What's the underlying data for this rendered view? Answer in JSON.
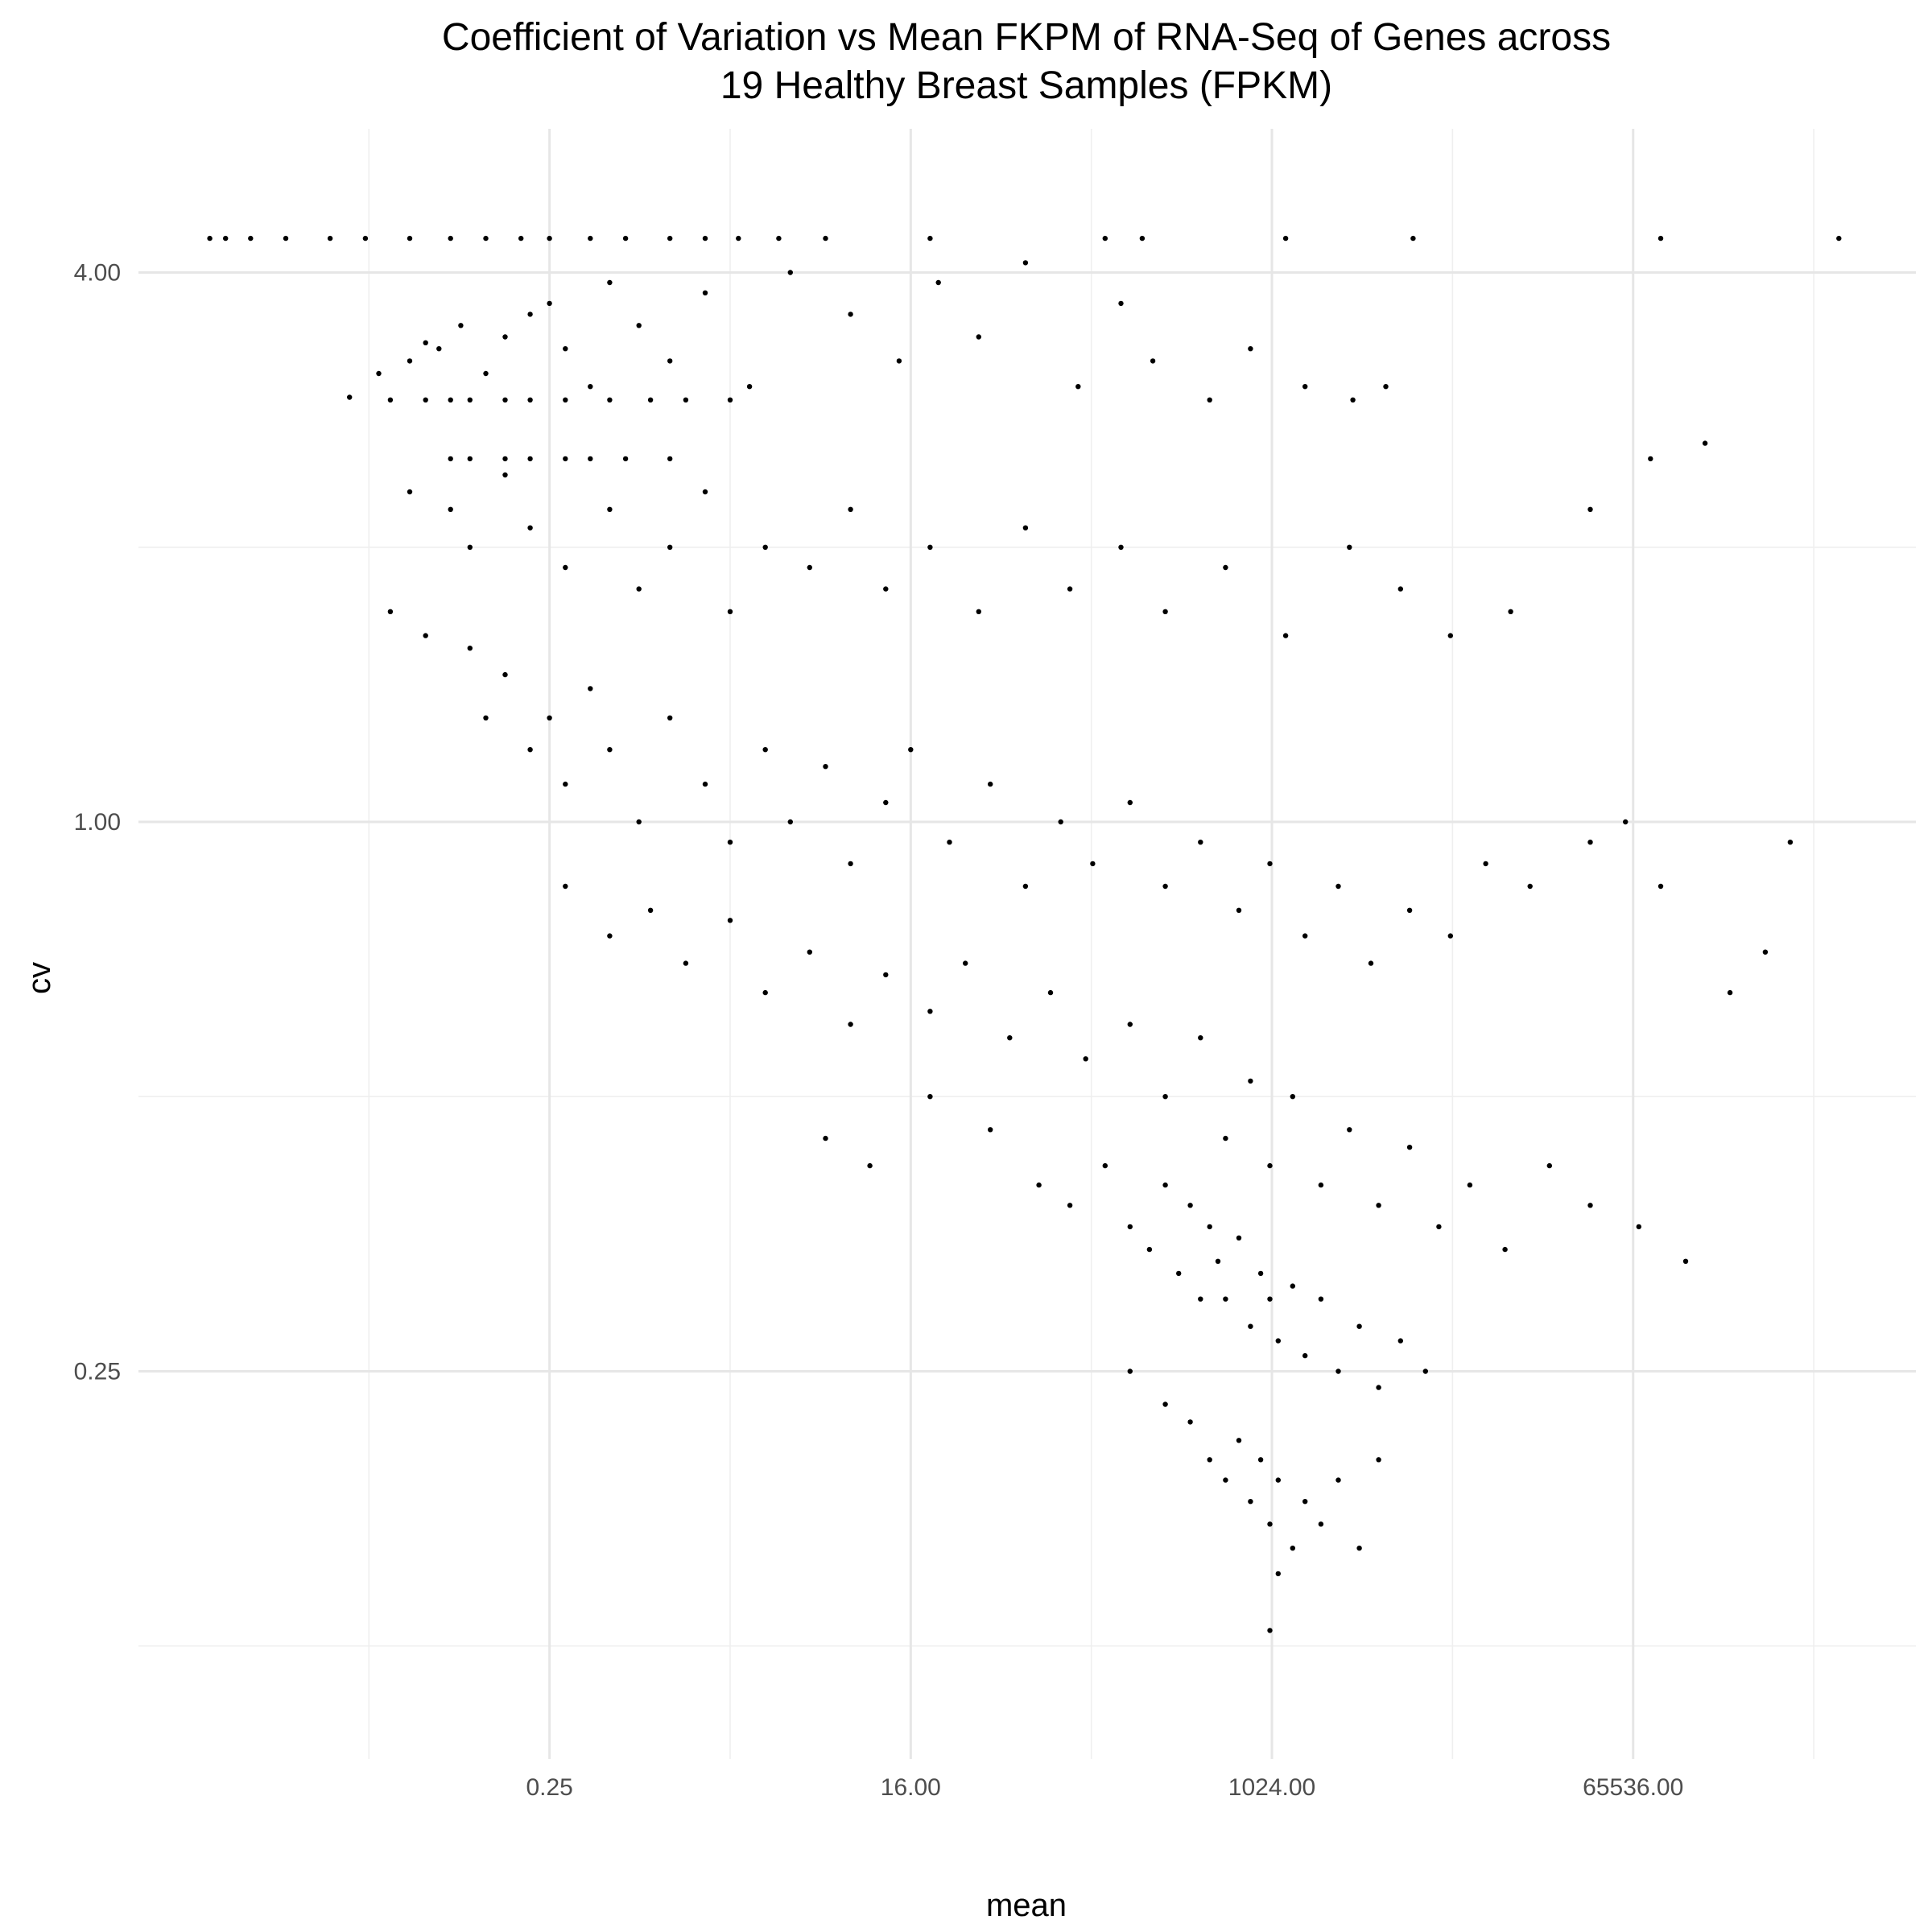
{
  "chart_data": {
    "type": "scatter",
    "title_line1": "Coefficient of Variation vs Mean FKPM of RNA-Seq of Genes across",
    "title_line2": "19 Healthy Breast Samples (FPKM)",
    "xlabel": "mean",
    "ylabel": "cv",
    "x_scale": "log2",
    "y_scale": "log2",
    "xlim": [
      0.0022,
      1700000
    ],
    "ylim": [
      0.094,
      5.3
    ],
    "x_ticks": [
      {
        "value": 0.25,
        "label": "0.25"
      },
      {
        "value": 16,
        "label": "16.00"
      },
      {
        "value": 1024,
        "label": "1024.00"
      },
      {
        "value": 65536,
        "label": "65536.00"
      }
    ],
    "y_ticks": [
      {
        "value": 0.25,
        "label": "0.25"
      },
      {
        "value": 1,
        "label": "1.00"
      },
      {
        "value": 4,
        "label": "4.00"
      }
    ],
    "grid": true,
    "legend": "none",
    "point_color": "#000000",
    "points": [
      [
        0.005,
        4.36
      ],
      [
        0.006,
        4.36
      ],
      [
        0.008,
        4.36
      ],
      [
        0.012,
        4.36
      ],
      [
        0.02,
        4.36
      ],
      [
        0.03,
        4.36
      ],
      [
        0.05,
        4.36
      ],
      [
        0.08,
        4.36
      ],
      [
        0.12,
        4.36
      ],
      [
        0.18,
        4.36
      ],
      [
        0.25,
        4.36
      ],
      [
        0.4,
        4.36
      ],
      [
        0.6,
        4.36
      ],
      [
        1.0,
        4.36
      ],
      [
        1.5,
        4.36
      ],
      [
        2.2,
        4.36
      ],
      [
        3.5,
        4.36
      ],
      [
        6,
        4.36
      ],
      [
        20,
        4.36
      ],
      [
        150,
        4.36
      ],
      [
        230,
        4.36
      ],
      [
        1200,
        4.36
      ],
      [
        5200,
        4.36
      ],
      [
        90000,
        4.36
      ],
      [
        700000,
        4.36
      ],
      [
        0.04,
        2.9
      ],
      [
        0.06,
        2.9
      ],
      [
        0.08,
        2.9
      ],
      [
        0.1,
        2.9
      ],
      [
        0.15,
        2.9
      ],
      [
        0.2,
        2.9
      ],
      [
        0.3,
        2.9
      ],
      [
        0.5,
        2.9
      ],
      [
        0.8,
        2.9
      ],
      [
        1.2,
        2.9
      ],
      [
        2.0,
        2.9
      ],
      [
        0.08,
        2.5
      ],
      [
        0.1,
        2.5
      ],
      [
        0.15,
        2.5
      ],
      [
        0.2,
        2.5
      ],
      [
        0.3,
        2.5
      ],
      [
        0.4,
        2.5
      ],
      [
        0.6,
        2.5
      ],
      [
        1.0,
        2.5
      ],
      [
        0.025,
        2.92
      ],
      [
        0.035,
        3.1
      ],
      [
        0.05,
        3.2
      ],
      [
        0.06,
        3.35
      ],
      [
        0.07,
        3.3
      ],
      [
        0.09,
        3.5
      ],
      [
        0.12,
        3.1
      ],
      [
        0.15,
        3.4
      ],
      [
        0.2,
        3.6
      ],
      [
        0.25,
        3.7
      ],
      [
        0.3,
        3.3
      ],
      [
        0.4,
        3.0
      ],
      [
        0.5,
        3.9
      ],
      [
        0.7,
        3.5
      ],
      [
        1.0,
        3.2
      ],
      [
        1.5,
        3.8
      ],
      [
        2.5,
        3.0
      ],
      [
        4,
        4.0
      ],
      [
        8,
        3.6
      ],
      [
        14,
        3.2
      ],
      [
        22,
        3.9
      ],
      [
        35,
        3.4
      ],
      [
        60,
        4.1
      ],
      [
        110,
        3.0
      ],
      [
        180,
        3.7
      ],
      [
        260,
        3.2
      ],
      [
        500,
        2.9
      ],
      [
        800,
        3.3
      ],
      [
        1500,
        3.0
      ],
      [
        2600,
        2.9
      ],
      [
        3800,
        3.0
      ],
      [
        0.05,
        2.3
      ],
      [
        0.08,
        2.2
      ],
      [
        0.1,
        2.0
      ],
      [
        0.15,
        2.4
      ],
      [
        0.2,
        2.1
      ],
      [
        0.3,
        1.9
      ],
      [
        0.5,
        2.2
      ],
      [
        0.7,
        1.8
      ],
      [
        1.0,
        2.0
      ],
      [
        1.5,
        2.3
      ],
      [
        2.0,
        1.7
      ],
      [
        3,
        2.0
      ],
      [
        5,
        1.9
      ],
      [
        8,
        2.2
      ],
      [
        12,
        1.8
      ],
      [
        20,
        2.0
      ],
      [
        35,
        1.7
      ],
      [
        60,
        2.1
      ],
      [
        100,
        1.8
      ],
      [
        180,
        2.0
      ],
      [
        300,
        1.7
      ],
      [
        600,
        1.9
      ],
      [
        1200,
        1.6
      ],
      [
        2500,
        2.0
      ],
      [
        4500,
        1.8
      ],
      [
        8000,
        1.6
      ],
      [
        16000,
        1.7
      ],
      [
        40000,
        2.2
      ],
      [
        80000,
        2.5
      ],
      [
        150000,
        2.6
      ],
      [
        0.04,
        1.7
      ],
      [
        0.06,
        1.6
      ],
      [
        0.1,
        1.55
      ],
      [
        0.12,
        1.3
      ],
      [
        0.15,
        1.45
      ],
      [
        0.2,
        1.2
      ],
      [
        0.25,
        1.3
      ],
      [
        0.3,
        1.1
      ],
      [
        0.4,
        1.4
      ],
      [
        0.5,
        1.2
      ],
      [
        0.7,
        1.0
      ],
      [
        1.0,
        1.3
      ],
      [
        1.5,
        1.1
      ],
      [
        2.0,
        0.95
      ],
      [
        3,
        1.2
      ],
      [
        4,
        1.0
      ],
      [
        6,
        1.15
      ],
      [
        8,
        0.9
      ],
      [
        12,
        1.05
      ],
      [
        16,
        1.2
      ],
      [
        25,
        0.95
      ],
      [
        40,
        1.1
      ],
      [
        60,
        0.85
      ],
      [
        90,
        1.0
      ],
      [
        130,
        0.9
      ],
      [
        200,
        1.05
      ],
      [
        300,
        0.85
      ],
      [
        450,
        0.95
      ],
      [
        700,
        0.8
      ],
      [
        1000,
        0.9
      ],
      [
        1500,
        0.75
      ],
      [
        2200,
        0.85
      ],
      [
        3200,
        0.7
      ],
      [
        5000,
        0.8
      ],
      [
        8000,
        0.75
      ],
      [
        12000,
        0.9
      ],
      [
        20000,
        0.85
      ],
      [
        40000,
        0.95
      ],
      [
        60000,
        1.0
      ],
      [
        90000,
        0.85
      ],
      [
        200000,
        0.65
      ],
      [
        300000,
        0.72
      ],
      [
        400000,
        0.95
      ],
      [
        0.3,
        0.85
      ],
      [
        0.5,
        0.75
      ],
      [
        0.8,
        0.8
      ],
      [
        1.2,
        0.7
      ],
      [
        2,
        0.78
      ],
      [
        3,
        0.65
      ],
      [
        5,
        0.72
      ],
      [
        8,
        0.6
      ],
      [
        12,
        0.68
      ],
      [
        20,
        0.62
      ],
      [
        30,
        0.7
      ],
      [
        50,
        0.58
      ],
      [
        80,
        0.65
      ],
      [
        120,
        0.55
      ],
      [
        200,
        0.6
      ],
      [
        300,
        0.5
      ],
      [
        450,
        0.58
      ],
      [
        600,
        0.45
      ],
      [
        800,
        0.52
      ],
      [
        1000,
        0.42
      ],
      [
        1300,
        0.5
      ],
      [
        1800,
        0.4
      ],
      [
        2500,
        0.46
      ],
      [
        3500,
        0.38
      ],
      [
        5000,
        0.44
      ],
      [
        7000,
        0.36
      ],
      [
        10000,
        0.4
      ],
      [
        15000,
        0.34
      ],
      [
        25000,
        0.42
      ],
      [
        40000,
        0.38
      ],
      [
        70000,
        0.36
      ],
      [
        120000,
        0.33
      ],
      [
        6,
        0.45
      ],
      [
        10,
        0.42
      ],
      [
        20,
        0.5
      ],
      [
        40,
        0.46
      ],
      [
        70,
        0.4
      ],
      [
        100,
        0.38
      ],
      [
        150,
        0.42
      ],
      [
        200,
        0.36
      ],
      [
        250,
        0.34
      ],
      [
        300,
        0.4
      ],
      [
        350,
        0.32
      ],
      [
        400,
        0.38
      ],
      [
        450,
        0.3
      ],
      [
        500,
        0.36
      ],
      [
        550,
        0.33
      ],
      [
        600,
        0.3
      ],
      [
        700,
        0.35
      ],
      [
        800,
        0.28
      ],
      [
        900,
        0.32
      ],
      [
        1000,
        0.3
      ],
      [
        1100,
        0.27
      ],
      [
        1300,
        0.31
      ],
      [
        1500,
        0.26
      ],
      [
        1800,
        0.3
      ],
      [
        2200,
        0.25
      ],
      [
        2800,
        0.28
      ],
      [
        3500,
        0.24
      ],
      [
        4500,
        0.27
      ],
      [
        6000,
        0.25
      ],
      [
        200,
        0.25
      ],
      [
        300,
        0.23
      ],
      [
        400,
        0.22
      ],
      [
        500,
        0.2
      ],
      [
        600,
        0.19
      ],
      [
        700,
        0.21
      ],
      [
        800,
        0.18
      ],
      [
        900,
        0.2
      ],
      [
        1000,
        0.17
      ],
      [
        1100,
        0.19
      ],
      [
        1300,
        0.16
      ],
      [
        1500,
        0.18
      ],
      [
        1800,
        0.17
      ],
      [
        2200,
        0.19
      ],
      [
        2800,
        0.16
      ],
      [
        3500,
        0.2
      ],
      [
        1000,
        0.13
      ],
      [
        1100,
        0.15
      ]
    ]
  }
}
